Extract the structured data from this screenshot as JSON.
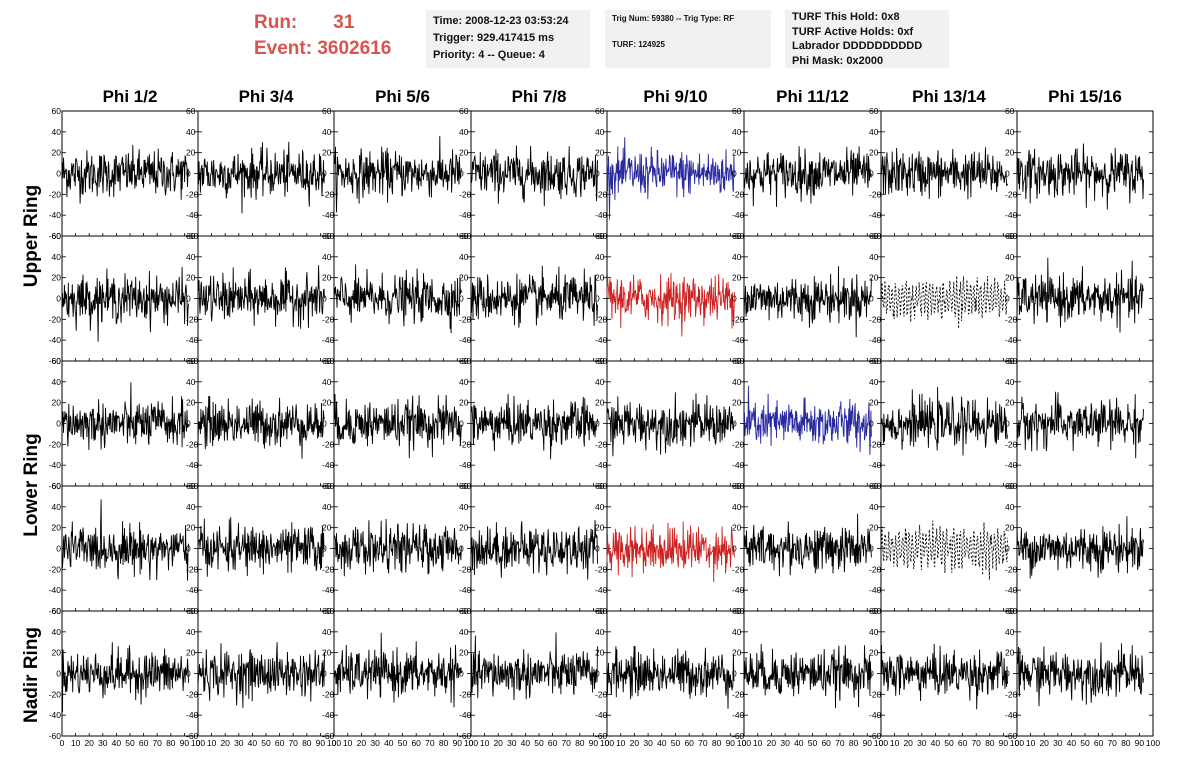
{
  "header": {
    "run_label": "Run:",
    "run_value": "31",
    "event_label": "Event:",
    "event_value": "3602616"
  },
  "info_time": {
    "time": "Time: 2008-12-23 03:53:24",
    "trigger": "Trigger: 929.417415 ms",
    "priority": "Priority: 4 -- Queue: 4"
  },
  "info_trig": {
    "trig": "Trig Num: 59380 -- Trig Type: RF",
    "turf": "TURF: 124925"
  },
  "info_turf": {
    "hold": "TURF This Hold: 0x8",
    "active": "TURF Active Holds: 0xf",
    "labrador": "Labrador DDDDDDDDDD",
    "phimask": "Phi Mask: 0x2000"
  },
  "chart_data": {
    "type": "line",
    "columns": [
      "Phi 1/2",
      "Phi 3/4",
      "Phi 5/6",
      "Phi 7/8",
      "Phi 9/10",
      "Phi 11/12",
      "Phi 13/14",
      "Phi 15/16"
    ],
    "rings": [
      "Upper Ring",
      "Lower Ring",
      "Nadir Ring"
    ],
    "ring_rows": [
      [
        0,
        1
      ],
      [
        2,
        3
      ],
      [
        4
      ]
    ],
    "xlim": [
      0,
      100
    ],
    "ylim": [
      -60,
      60
    ],
    "x_ticks": [
      0,
      10,
      20,
      30,
      40,
      50,
      60,
      70,
      80,
      90,
      100
    ],
    "y_ticks": [
      -60,
      -40,
      -20,
      0,
      20,
      40,
      60
    ],
    "samples": 260,
    "trace_end": 93,
    "colors": {
      "normal": "#000000",
      "triggered_blue": "#2a2aa0",
      "triggered_red": "#cc2222",
      "axis": "#000000"
    },
    "highlights": [
      {
        "row": 0,
        "col": 4,
        "color": "#2a2aa0",
        "style": "solid"
      },
      {
        "row": 1,
        "col": 4,
        "color": "#cc2222",
        "style": "solid"
      },
      {
        "row": 2,
        "col": 5,
        "color": "#2a2aa0",
        "style": "solid"
      },
      {
        "row": 3,
        "col": 4,
        "color": "#cc2222",
        "style": "solid"
      },
      {
        "row": 1,
        "col": 6,
        "color": "#000000",
        "style": "dashed"
      },
      {
        "row": 3,
        "col": 6,
        "color": "#000000",
        "style": "dashed"
      }
    ]
  }
}
